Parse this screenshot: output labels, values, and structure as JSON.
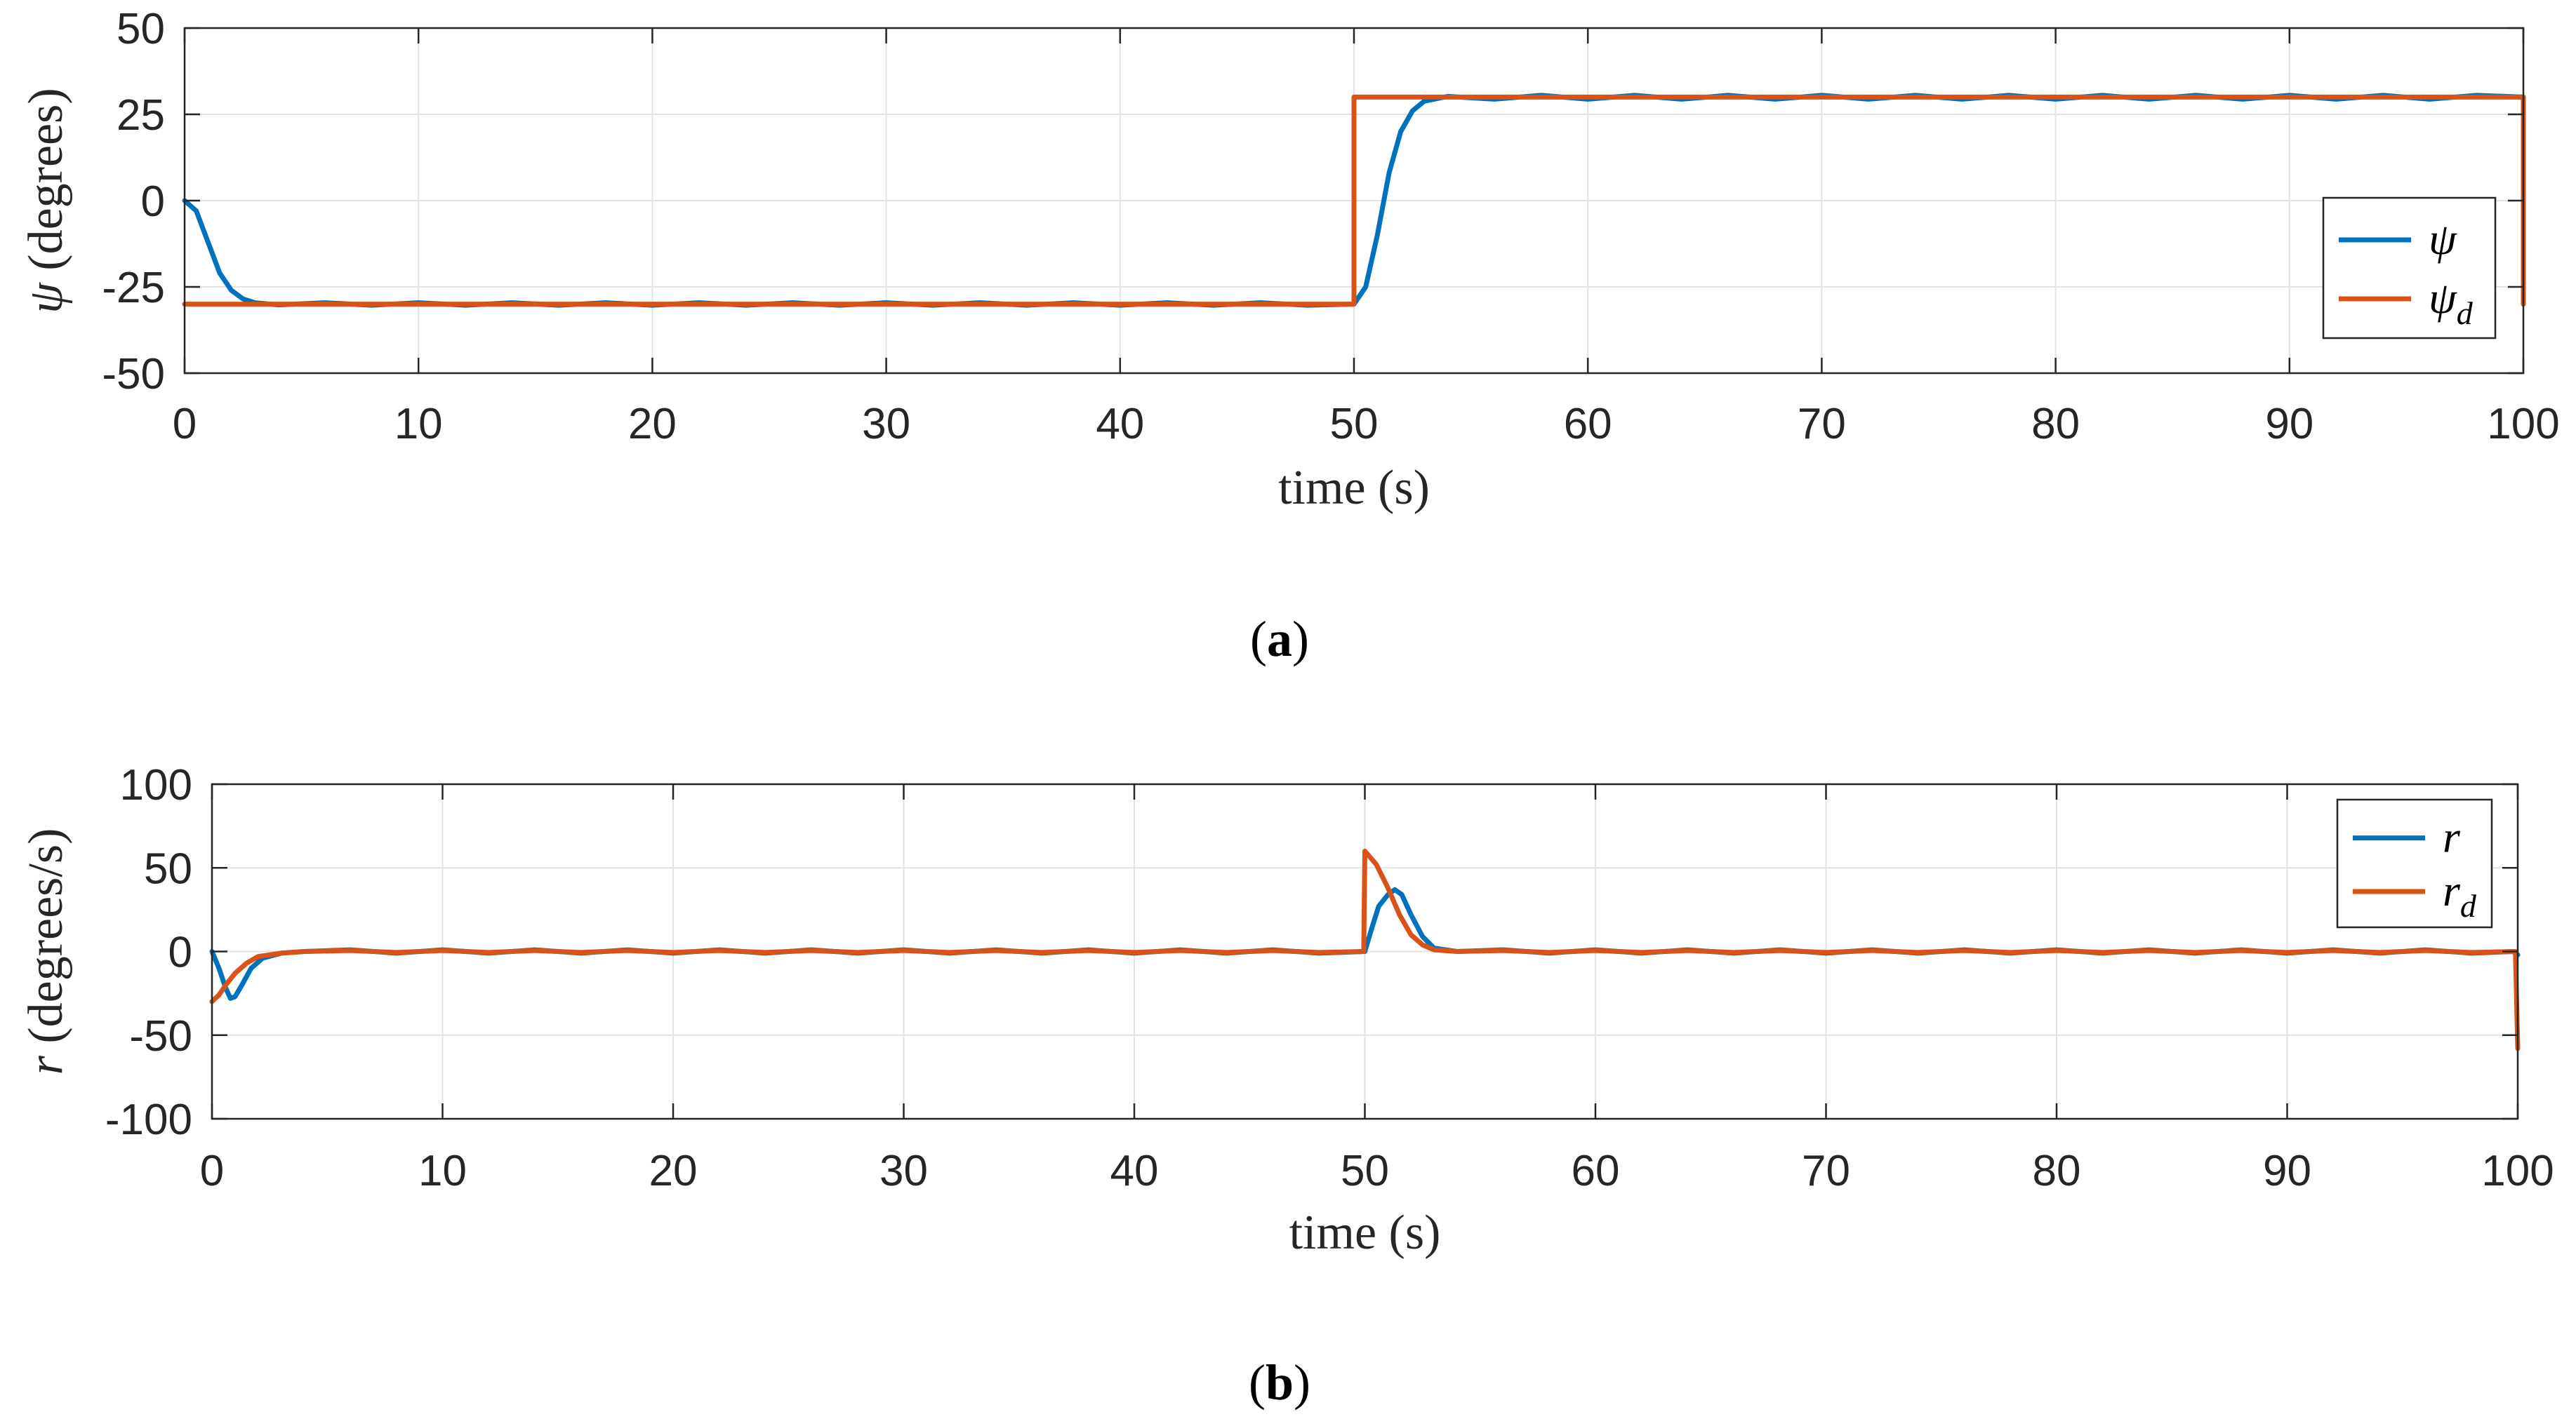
{
  "chart_data": [
    {
      "type": "line",
      "panel_label": "a",
      "xlabel": "time (s)",
      "ylabel_symbol": "ψ",
      "ylabel_unit": "(degrees)",
      "xlim": [
        0,
        100
      ],
      "ylim": [
        -50,
        50
      ],
      "xticks": [
        0,
        10,
        20,
        30,
        40,
        50,
        60,
        70,
        80,
        90,
        100
      ],
      "yticks": [
        -50,
        -25,
        0,
        25,
        50
      ],
      "grid": true,
      "legend_position": "right, mid-height",
      "series": [
        {
          "name": "ψ",
          "name_subscript": "",
          "color": "#0072BD",
          "x": [
            0,
            0.5,
            1.0,
            1.5,
            2.0,
            2.5,
            3.0,
            4.0,
            6.0,
            8.0,
            10.0,
            12.0,
            14.0,
            16.0,
            18.0,
            20.0,
            22.0,
            24.0,
            26.0,
            28.0,
            30.0,
            32.0,
            34.0,
            36.0,
            38.0,
            40.0,
            42.0,
            44.0,
            46.0,
            48.0,
            50.0,
            50.5,
            51.0,
            51.5,
            52.0,
            52.5,
            53.0,
            54.0,
            56.0,
            58.0,
            60.0,
            62.0,
            64.0,
            66.0,
            68.0,
            70.0,
            72.0,
            74.0,
            76.0,
            78.0,
            80.0,
            82.0,
            84.0,
            86.0,
            88.0,
            90.0,
            92.0,
            94.0,
            96.0,
            98.0,
            100.0
          ],
          "y": [
            0,
            -3,
            -12,
            -21,
            -26,
            -28.5,
            -29.6,
            -30.2,
            -29.6,
            -30.3,
            -29.6,
            -30.3,
            -29.6,
            -30.3,
            -29.6,
            -30.3,
            -29.6,
            -30.3,
            -29.6,
            -30.3,
            -29.6,
            -30.3,
            -29.6,
            -30.3,
            -29.6,
            -30.3,
            -29.6,
            -30.3,
            -29.6,
            -30.3,
            -30,
            -25,
            -10,
            8,
            20,
            26,
            28.8,
            30.2,
            29.4,
            30.5,
            29.4,
            30.5,
            29.4,
            30.5,
            29.4,
            30.5,
            29.4,
            30.5,
            29.4,
            30.5,
            29.4,
            30.5,
            29.4,
            30.5,
            29.4,
            30.5,
            29.4,
            30.5,
            29.4,
            30.5,
            30
          ]
        },
        {
          "name": "ψ",
          "name_subscript": "d",
          "color": "#D95319",
          "x": [
            0,
            50,
            50,
            100,
            100
          ],
          "y": [
            -30,
            -30,
            30,
            30,
            -30
          ]
        }
      ]
    },
    {
      "type": "line",
      "panel_label": "b",
      "xlabel": "time (s)",
      "ylabel_symbol": "r",
      "ylabel_unit": "(degrees/s)",
      "xlim": [
        0,
        100
      ],
      "ylim": [
        -100,
        100
      ],
      "xticks": [
        0,
        10,
        20,
        30,
        40,
        50,
        60,
        70,
        80,
        90,
        100
      ],
      "yticks": [
        -100,
        -50,
        0,
        50,
        100
      ],
      "grid": true,
      "legend_position": "top-right",
      "series": [
        {
          "name": "r",
          "name_subscript": "",
          "color": "#0072BD",
          "x": [
            0,
            0.3,
            0.6,
            0.8,
            1.0,
            1.3,
            1.7,
            2.2,
            3.0,
            4.0,
            6.0,
            8.0,
            10.0,
            12.0,
            14.0,
            16.0,
            18.0,
            20.0,
            22.0,
            24.0,
            26.0,
            28.0,
            30.0,
            32.0,
            34.0,
            36.0,
            38.0,
            40.0,
            42.0,
            44.0,
            46.0,
            48.0,
            50.0,
            50.3,
            50.6,
            51.0,
            51.3,
            51.6,
            52.0,
            52.5,
            53.0,
            54.0,
            56.0,
            58.0,
            60.0,
            62.0,
            64.0,
            66.0,
            68.0,
            70.0,
            72.0,
            74.0,
            76.0,
            78.0,
            80.0,
            82.0,
            84.0,
            86.0,
            88.0,
            90.0,
            92.0,
            94.0,
            96.0,
            98.0,
            99.8,
            100.0
          ],
          "y": [
            0,
            -10,
            -22,
            -28,
            -27,
            -20,
            -10,
            -4,
            -1,
            0,
            1,
            -1,
            1,
            -1,
            1,
            -1,
            1,
            -1,
            1,
            -1,
            1,
            -1,
            1,
            -1,
            1,
            -1,
            1,
            -1,
            1,
            -1,
            1,
            -1,
            0,
            14,
            27,
            34,
            37,
            34,
            22,
            9,
            2,
            0,
            1,
            -1,
            1,
            -1,
            1,
            -1,
            1,
            -1,
            1,
            -1,
            1,
            -1,
            1,
            -1,
            1,
            -1,
            1,
            -1,
            1,
            -1,
            1,
            -1,
            0,
            -2
          ]
        },
        {
          "name": "r",
          "name_subscript": "d",
          "color": "#D95319",
          "x": [
            0,
            0.3,
            0.6,
            1.0,
            1.5,
            2.0,
            3.0,
            4.0,
            6.0,
            8.0,
            10.0,
            12.0,
            14.0,
            16.0,
            18.0,
            20.0,
            22.0,
            24.0,
            26.0,
            28.0,
            30.0,
            32.0,
            34.0,
            36.0,
            38.0,
            40.0,
            42.0,
            44.0,
            46.0,
            48.0,
            49.95,
            50.0,
            50.5,
            51.0,
            51.5,
            52.0,
            52.5,
            53.0,
            54.0,
            56.0,
            58.0,
            60.0,
            62.0,
            64.0,
            66.0,
            68.0,
            70.0,
            72.0,
            74.0,
            76.0,
            78.0,
            80.0,
            82.0,
            84.0,
            86.0,
            88.0,
            90.0,
            92.0,
            94.0,
            96.0,
            98.0,
            99.9,
            100.0
          ],
          "y": [
            -30,
            -26,
            -20,
            -13,
            -7,
            -3,
            -1,
            0,
            0.6,
            -0.6,
            0.6,
            -0.6,
            0.6,
            -0.6,
            0.6,
            -0.6,
            0.6,
            -0.6,
            0.6,
            -0.6,
            0.6,
            -0.6,
            0.6,
            -0.6,
            0.6,
            -0.6,
            0.6,
            -0.6,
            0.6,
            -0.6,
            0,
            60,
            52,
            38,
            22,
            10,
            4,
            1,
            0,
            0.6,
            -0.6,
            0.6,
            -0.6,
            0.6,
            -0.6,
            0.6,
            -0.6,
            0.6,
            -0.6,
            0.6,
            -0.6,
            0.6,
            -0.6,
            0.6,
            -0.6,
            0.6,
            -0.6,
            0.6,
            -0.6,
            0.6,
            -0.6,
            0,
            -58
          ]
        }
      ]
    }
  ]
}
